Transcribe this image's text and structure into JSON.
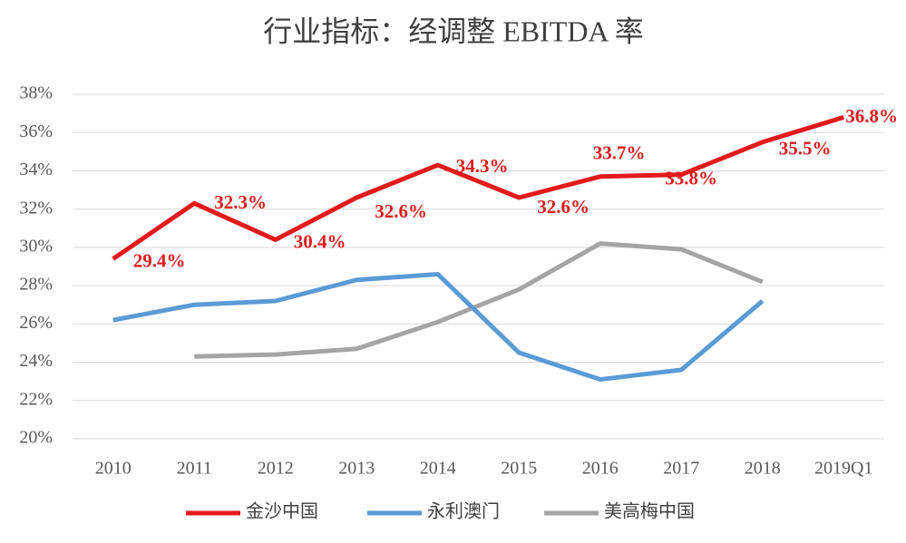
{
  "chart_data": {
    "type": "line",
    "title": "行业指标：经调整 EBITDA 率",
    "categories": [
      "2010",
      "2011",
      "2012",
      "2013",
      "2014",
      "2015",
      "2016",
      "2017",
      "2018",
      "2019Q1"
    ],
    "series": [
      {
        "name": "金沙中国",
        "color": "#e31a1c",
        "values": [
          29.4,
          32.3,
          30.4,
          32.6,
          34.3,
          32.6,
          33.7,
          33.8,
          35.5,
          36.8
        ],
        "value_labels": [
          "29.4%",
          "32.3%",
          "30.4%",
          "32.6%",
          "34.3%",
          "32.6%",
          "33.7%",
          "33.8%",
          "35.5%",
          "36.8%"
        ]
      },
      {
        "name": "永利澳门",
        "color": "#5b9bd5",
        "values": [
          26.2,
          27.0,
          27.2,
          28.3,
          28.6,
          24.5,
          23.1,
          23.6,
          27.2,
          null
        ]
      },
      {
        "name": "美高梅中国",
        "color": "#a5a5a5",
        "values": [
          null,
          24.3,
          24.4,
          24.7,
          26.1,
          27.8,
          30.2,
          29.9,
          28.2,
          null
        ]
      }
    ],
    "ylim": [
      20,
      38
    ],
    "yticks": [
      {
        "value": 20,
        "label": "20%"
      },
      {
        "value": 22,
        "label": "22%"
      },
      {
        "value": 24,
        "label": "24%"
      },
      {
        "value": 26,
        "label": "26%"
      },
      {
        "value": 28,
        "label": "28%"
      },
      {
        "value": 30,
        "label": "30%"
      },
      {
        "value": 32,
        "label": "32%"
      },
      {
        "value": 34,
        "label": "34%"
      },
      {
        "value": 36,
        "label": "36%"
      },
      {
        "value": 38,
        "label": "38%"
      }
    ],
    "grid": true
  }
}
